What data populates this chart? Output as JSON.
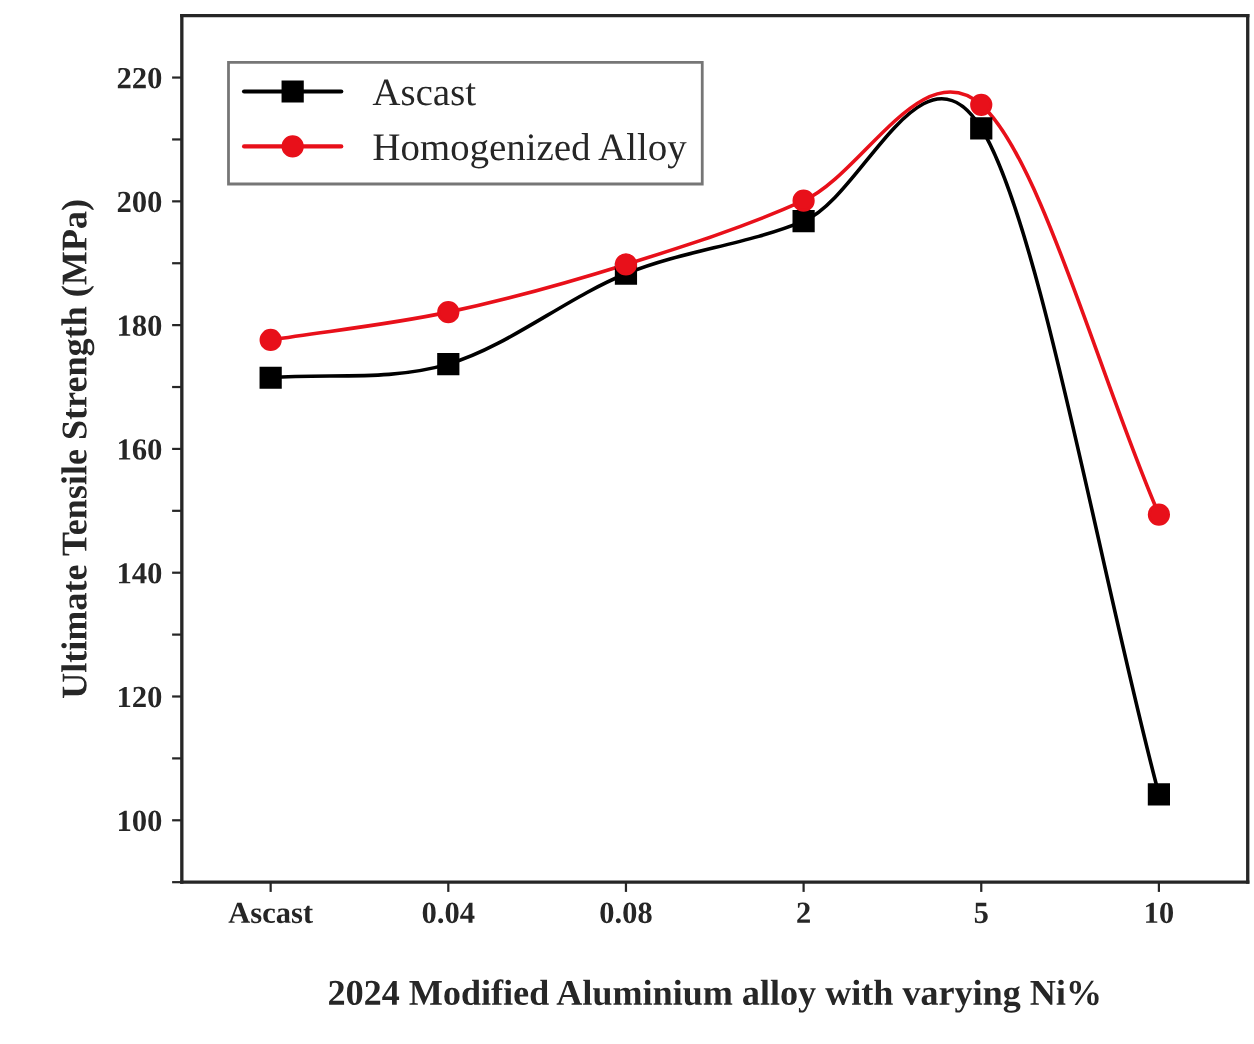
{
  "chart_data": {
    "type": "line",
    "xlabel": "2024 Modified Aluminium alloy with varying Ni%",
    "ylabel": "Ultimate Tensile Strength (MPa)",
    "categories": [
      "Ascast",
      "0.04",
      "0.08",
      "2",
      "5",
      "10"
    ],
    "series": [
      {
        "name": "Ascast",
        "color": "#000000",
        "marker": "square",
        "values": [
          171.5,
          173.7,
          188.3,
          196.8,
          211.8,
          104.2
        ]
      },
      {
        "name": "Homogenized Alloy",
        "color": "#e8101a",
        "marker": "circle",
        "values": [
          177.6,
          182.1,
          189.8,
          200.1,
          215.6,
          149.4
        ]
      }
    ],
    "ylim": [
      90,
      230
    ],
    "yticks": [
      {
        "value": 90,
        "label": null
      },
      100,
      {
        "value": 110,
        "label": null
      },
      120,
      {
        "value": 130,
        "label": null
      },
      140,
      {
        "value": 150,
        "label": null
      },
      160,
      {
        "value": 170,
        "label": null
      },
      180,
      {
        "value": 190,
        "label": null
      },
      200,
      {
        "value": 210,
        "label": null
      },
      220
    ],
    "legend": "top left",
    "grid": false,
    "line_style": "solid"
  }
}
